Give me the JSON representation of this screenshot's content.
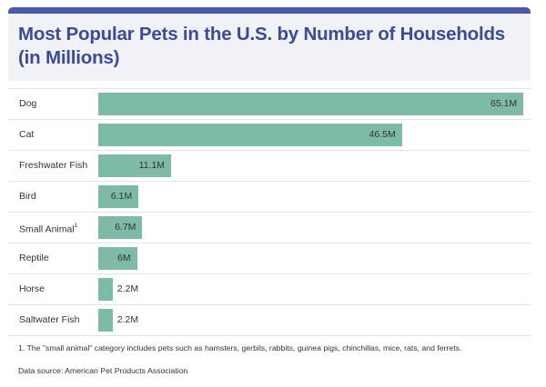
{
  "page": {
    "title": "Most Popular Pets in the U.S. by Number of Households (in Millions)",
    "footnote": "1. The \"small animal\" category includes pets such as hamsters, gerbils, rabbits, guinea pigs, chinchillas, mice, rats, and ferrets.",
    "source": "Data source: American Pet Products Association"
  },
  "colors": {
    "accent": "#4a5aa8",
    "title": "#3b4a9a",
    "bar": "#7dbba6",
    "header_bg": "#f0f2f7"
  },
  "chart_data": {
    "type": "bar",
    "orientation": "horizontal",
    "title": "Most Popular Pets in the U.S. by Number of Households (in Millions)",
    "xlabel": "",
    "ylabel": "",
    "xlim": [
      0,
      65.1
    ],
    "grid": false,
    "legend": "none",
    "categories": [
      "Dog",
      "Cat",
      "Freshwater Fish",
      "Bird",
      "Small Animal",
      "Reptile",
      "Horse",
      "Saltwater Fish"
    ],
    "footnote_marks": [
      "",
      "",
      "",
      "",
      "1",
      "",
      "",
      ""
    ],
    "values": [
      65.1,
      46.5,
      11.1,
      6.1,
      6.7,
      6,
      2.2,
      2.2
    ],
    "value_labels": [
      "65.1M",
      "46.5M",
      "11.1M",
      "6.1M",
      "6.7M",
      "6M",
      "2.2M",
      "2.2M"
    ]
  }
}
